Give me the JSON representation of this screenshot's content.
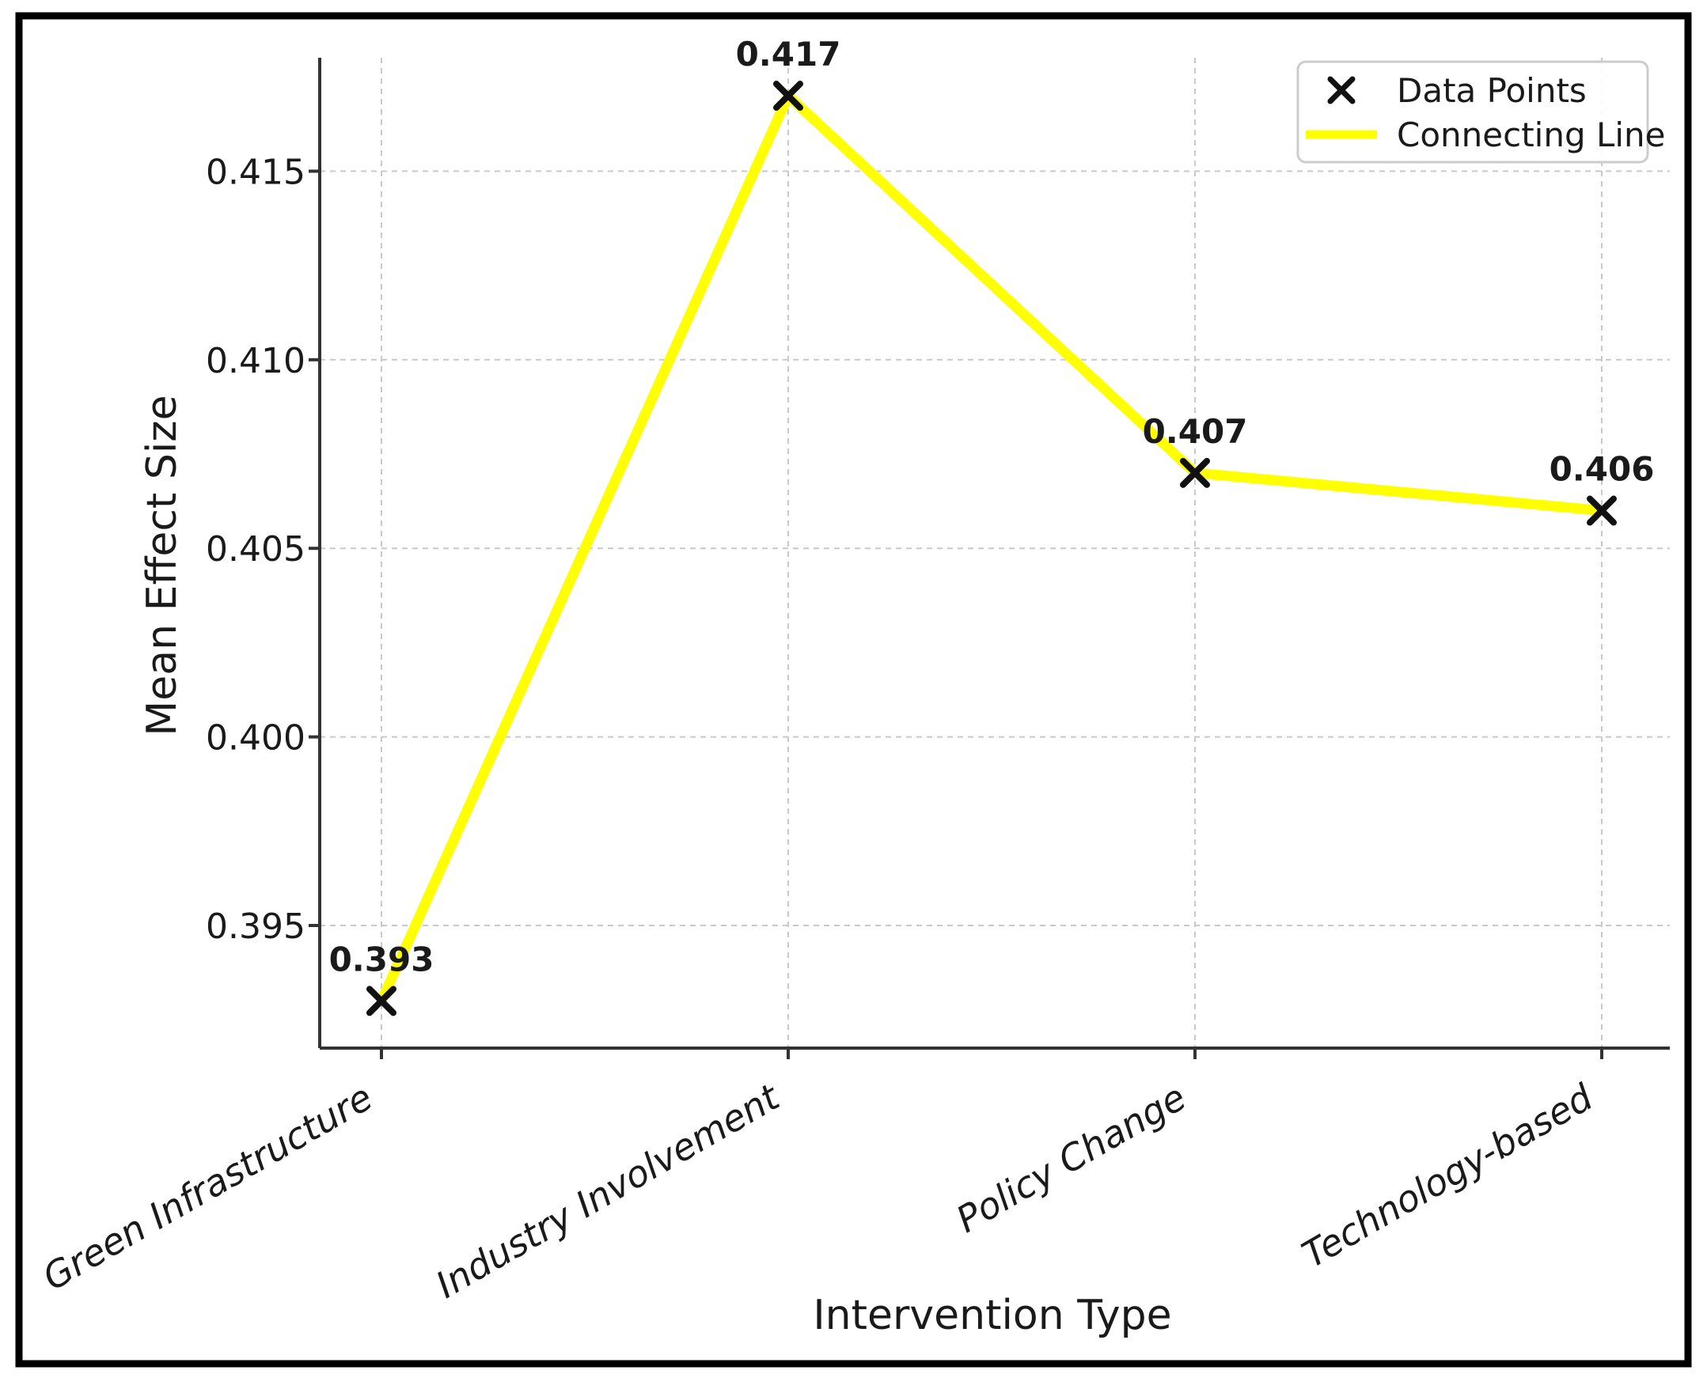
{
  "figure": {
    "background": "#ffffff",
    "border_color": "#000000"
  },
  "chart_data": {
    "type": "line",
    "title": "",
    "xlabel": "Intervention Type",
    "ylabel": "Mean Effect Size",
    "categories": [
      "Green Infrastructure",
      "Industry Involvement",
      "Policy Change",
      "Technology-based"
    ],
    "series": [
      {
        "name": "Mean Effect Size",
        "values": [
          0.393,
          0.417,
          0.407,
          0.406
        ]
      }
    ],
    "point_labels": [
      "0.393",
      "0.417",
      "0.407",
      "0.406"
    ],
    "y_ticks": [
      0.395,
      0.4,
      0.405,
      0.41,
      0.415
    ],
    "y_tick_labels": [
      "0.395",
      "0.400",
      "0.405",
      "0.410",
      "0.415"
    ],
    "ylim": [
      0.3912,
      0.4181
    ],
    "grid": true,
    "legend": {
      "position": "upper right",
      "entries": [
        {
          "label": "Data Points",
          "marker": "x",
          "color": "#111111"
        },
        {
          "label": "Connecting Line",
          "marker": "line",
          "color": "#ffff00"
        }
      ]
    },
    "colors": {
      "line": "#ffff00",
      "marker": "#111111",
      "grid": "#c9c9c9",
      "spine": "#333333",
      "text": "#1a1a1a",
      "legend_border": "#cccccc"
    }
  }
}
